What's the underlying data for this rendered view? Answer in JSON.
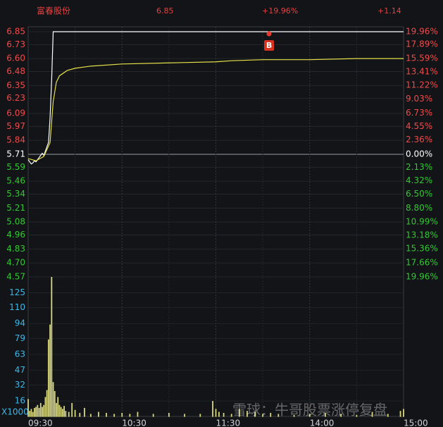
{
  "chart_data": {
    "type": "intraday",
    "header": {
      "name": "富春股份",
      "price": "6.85",
      "change_pct": "+19.96%",
      "change": "+1.14"
    },
    "xlim": [
      0,
      240
    ],
    "xticks": [
      {
        "value": 0,
        "label": "09:30"
      },
      {
        "value": 60,
        "label": "10:30"
      },
      {
        "value": 120,
        "label": "11:30"
      },
      {
        "value": 180,
        "label": "14:00"
      },
      {
        "value": 240,
        "label": "15:00"
      }
    ],
    "ylim": [
      4.57,
      6.85
    ],
    "prev_close": 5.71,
    "yticks": [
      6.85,
      6.73,
      {
        "value": 6.6,
        "label": "6.60"
      },
      6.48,
      6.35,
      6.23,
      6.09,
      5.97,
      5.84,
      5.71,
      5.59,
      5.46,
      5.34,
      5.21,
      5.08,
      4.96,
      4.83,
      {
        "value": 4.7,
        "label": "4.70"
      },
      4.57
    ],
    "y2lim": [
      -19.96,
      19.96
    ],
    "y2ticks": [
      {
        "value": 19.96,
        "label": "19.96%"
      },
      {
        "value": 17.89,
        "label": "17.89%"
      },
      {
        "value": 15.59,
        "label": "15.59%"
      },
      {
        "value": 13.41,
        "label": "13.41%"
      },
      {
        "value": 11.22,
        "label": "11.22%"
      },
      {
        "value": 9.03,
        "label": "9.03%"
      },
      {
        "value": 6.73,
        "label": "6.73%"
      },
      {
        "value": 4.55,
        "label": "4.55%"
      },
      {
        "value": 2.36,
        "label": "2.36%"
      },
      {
        "value": 0,
        "label": "0.00%"
      },
      {
        "value": -2.13,
        "label": "2.13%"
      },
      {
        "value": -4.32,
        "label": "4.32%"
      },
      {
        "value": -6.5,
        "label": "6.50%"
      },
      {
        "value": -8.8,
        "label": "8.80%"
      },
      {
        "value": -10.99,
        "label": "10.99%"
      },
      {
        "value": -13.18,
        "label": "13.18%"
      },
      {
        "value": -15.36,
        "label": "15.36%"
      },
      {
        "value": -17.66,
        "label": "17.66%"
      },
      {
        "value": -19.96,
        "label": "19.96%"
      }
    ],
    "series": [
      {
        "color": "#ffffff",
        "x": [
          0,
          1,
          2,
          3,
          4,
          5,
          6,
          7,
          8,
          9,
          10,
          11,
          12,
          13,
          14,
          15,
          16,
          240
        ],
        "values": [
          5.66,
          5.64,
          5.62,
          5.63,
          5.65,
          5.64,
          5.66,
          5.68,
          5.7,
          5.72,
          5.7,
          5.74,
          5.78,
          5.82,
          6.05,
          6.4,
          6.85,
          6.85
        ]
      },
      {
        "color": "#e6e04a",
        "x": [
          0,
          5,
          10,
          14,
          16,
          18,
          20,
          25,
          30,
          40,
          60,
          90,
          120,
          130,
          150,
          180,
          210,
          240
        ],
        "values": [
          5.67,
          5.65,
          5.69,
          5.82,
          6.2,
          6.38,
          6.44,
          6.49,
          6.51,
          6.53,
          6.55,
          6.56,
          6.57,
          6.58,
          6.59,
          6.59,
          6.6,
          6.6
        ]
      }
    ],
    "markers": [
      {
        "x": 154,
        "y": 6.85,
        "label": "B"
      }
    ],
    "volume": {
      "unit": "X1000",
      "color": "#d8d880",
      "ylim": [
        0,
        141
      ],
      "yticks": [
        16,
        32,
        47,
        63,
        79,
        94,
        110,
        125
      ],
      "x": [
        0,
        1,
        2,
        3,
        4,
        5,
        6,
        7,
        8,
        9,
        10,
        11,
        12,
        13,
        14,
        15,
        16,
        17,
        18,
        19,
        20,
        21,
        22,
        23,
        24,
        26,
        28,
        30,
        33,
        36,
        40,
        45,
        50,
        55,
        60,
        65,
        70,
        80,
        90,
        100,
        110,
        118,
        120,
        122,
        125,
        130,
        135,
        140,
        145,
        150,
        155,
        160,
        170,
        180,
        190,
        200,
        210,
        220,
        230,
        238,
        240
      ],
      "values": [
        18,
        6,
        8,
        5,
        9,
        10,
        12,
        9,
        14,
        10,
        12,
        20,
        27,
        78,
        93,
        141,
        35,
        26,
        14,
        20,
        12,
        10,
        8,
        11,
        6,
        5,
        14,
        7,
        4,
        9,
        3,
        5,
        4,
        3,
        4,
        3,
        5,
        3,
        4,
        3,
        3,
        16,
        8,
        5,
        4,
        3,
        8,
        6,
        5,
        3,
        4,
        3,
        2,
        3,
        4,
        3,
        2,
        5,
        3,
        6,
        8
      ]
    },
    "watermark": "雪球：牛哥股票涨停复盘"
  }
}
